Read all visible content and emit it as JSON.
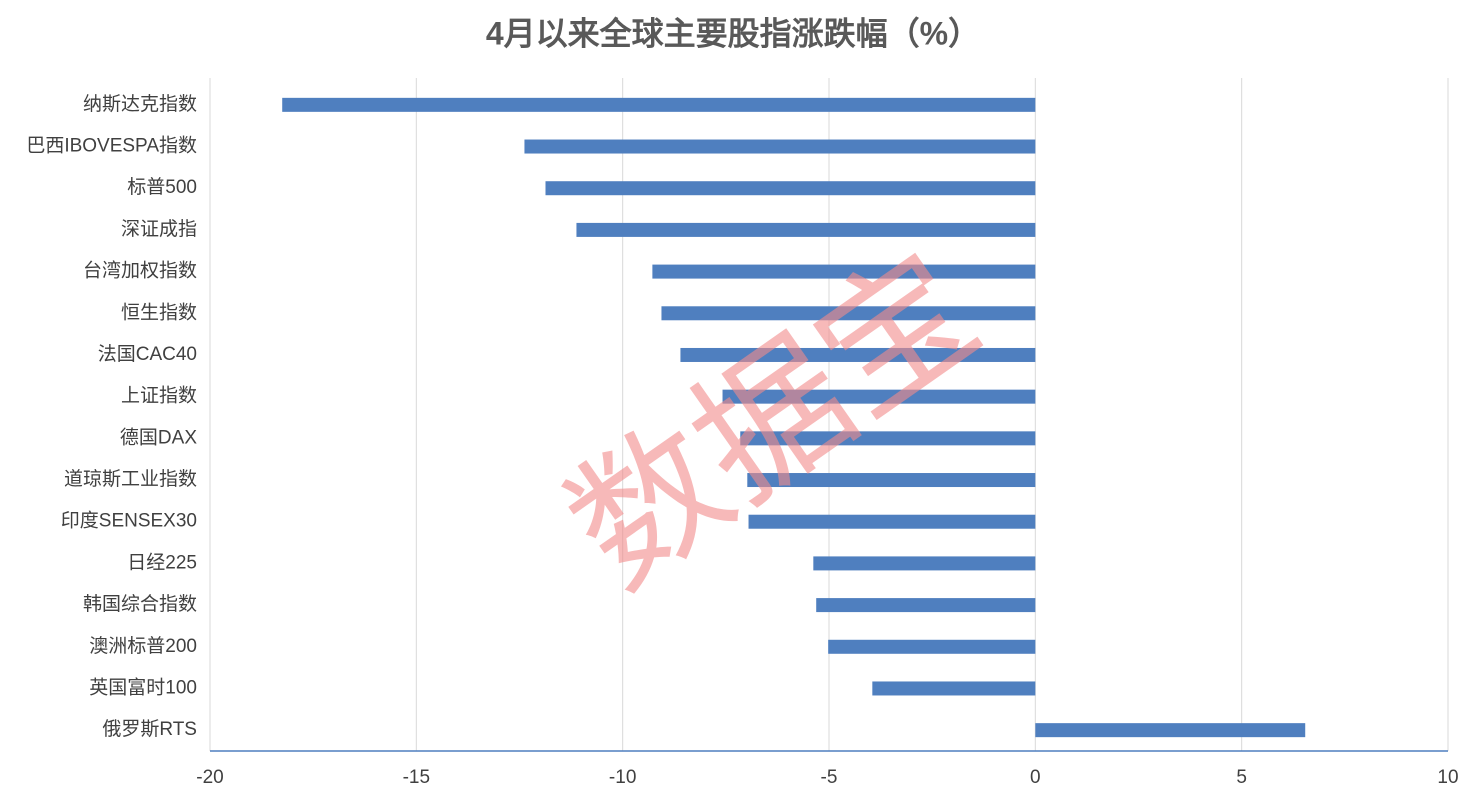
{
  "chart_data": {
    "type": "hbar",
    "title": "4月以来全球主要股指涨跌幅（%）",
    "watermark": "数据宝",
    "categories": [
      "纳斯达克指数",
      "巴西IBOVESPA指数",
      "标普500",
      "深证成指",
      "台湾加权指数",
      "恒生指数",
      "法国CAC40",
      "上证指数",
      "德国DAX",
      "道琼斯工业指数",
      "印度SENSEX30",
      "日经225",
      "韩国综合指数",
      "澳洲标普200",
      "英国富时100",
      "俄罗斯RTS"
    ],
    "values": [
      -18.25,
      -12.38,
      -11.87,
      -11.12,
      -9.28,
      -9.06,
      -8.6,
      -7.58,
      -7.15,
      -6.98,
      -6.95,
      -5.38,
      -5.31,
      -5.02,
      -3.95,
      6.54
    ],
    "color": "#4f7fbf",
    "xlim": [
      -20,
      10
    ],
    "xticks": [
      -20,
      -15,
      -10,
      -5,
      0,
      5,
      10
    ],
    "grid": true
  }
}
